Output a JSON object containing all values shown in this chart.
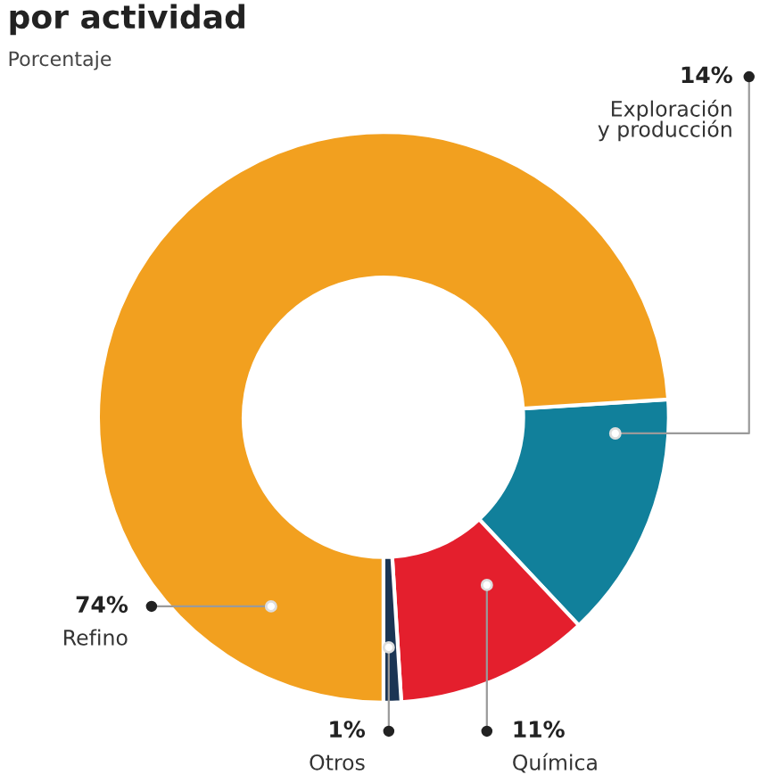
{
  "chart_data": {
    "type": "donut",
    "title": "por actividad",
    "subtitle": "Porcentaje",
    "categories": [
      "Exploración\ny producción",
      "Química",
      "Otros",
      "Refino"
    ],
    "values": [
      14,
      11,
      1,
      74
    ],
    "colors": [
      "#11809b",
      "#e41f2d",
      "#1b3554",
      "#f2a01f"
    ],
    "value_labels": [
      "14%",
      "11%",
      "1%",
      "74%"
    ]
  }
}
